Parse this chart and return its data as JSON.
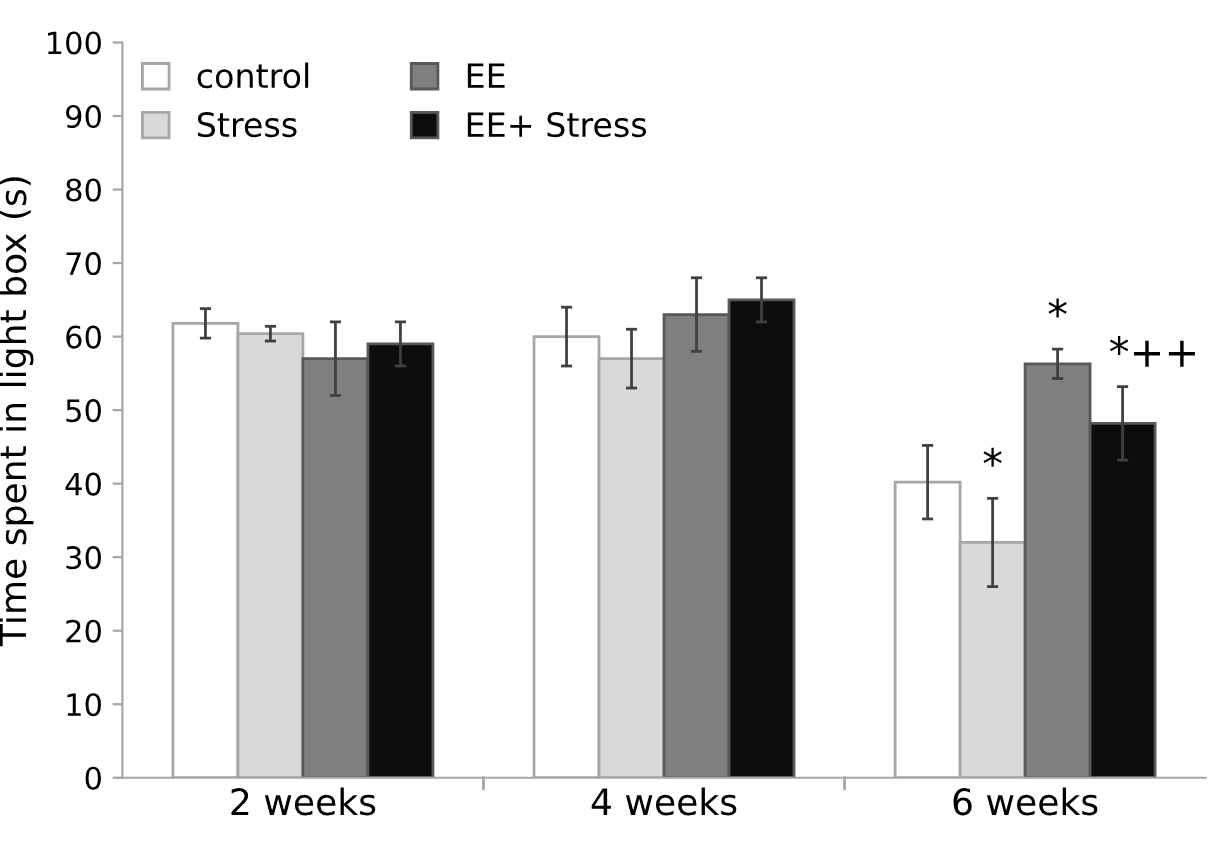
{
  "chart_data": {
    "type": "bar",
    "ylabel": "Time spent in light box (s)",
    "categories": [
      "2 weeks",
      "4 weeks",
      "6 weeks"
    ],
    "series": [
      {
        "name": "control",
        "color": "#ffffff",
        "values": [
          61.8,
          60,
          40.2
        ],
        "errors": [
          2,
          4,
          5
        ]
      },
      {
        "name": "Stress",
        "color": "#d9d9d9",
        "values": [
          60.4,
          57,
          32
        ],
        "errors": [
          1,
          4,
          6
        ],
        "value_labels": [
          null,
          null,
          "*"
        ]
      },
      {
        "name": "EE",
        "color": "#7f7f7f",
        "values": [
          57,
          63,
          56.3
        ],
        "errors": [
          5,
          5,
          2
        ],
        "value_labels": [
          null,
          null,
          "*"
        ]
      },
      {
        "name": "EE+ Stress",
        "color": "#0d0d0d",
        "values": [
          59,
          65,
          48.2
        ],
        "errors": [
          3,
          3,
          5
        ],
        "value_labels": [
          null,
          null,
          "*++"
        ]
      }
    ],
    "ylim": [
      0,
      100
    ],
    "yticks": [
      0,
      10,
      20,
      30,
      40,
      50,
      60,
      70,
      80,
      90,
      100
    ],
    "grid": false,
    "legend": "top left"
  }
}
